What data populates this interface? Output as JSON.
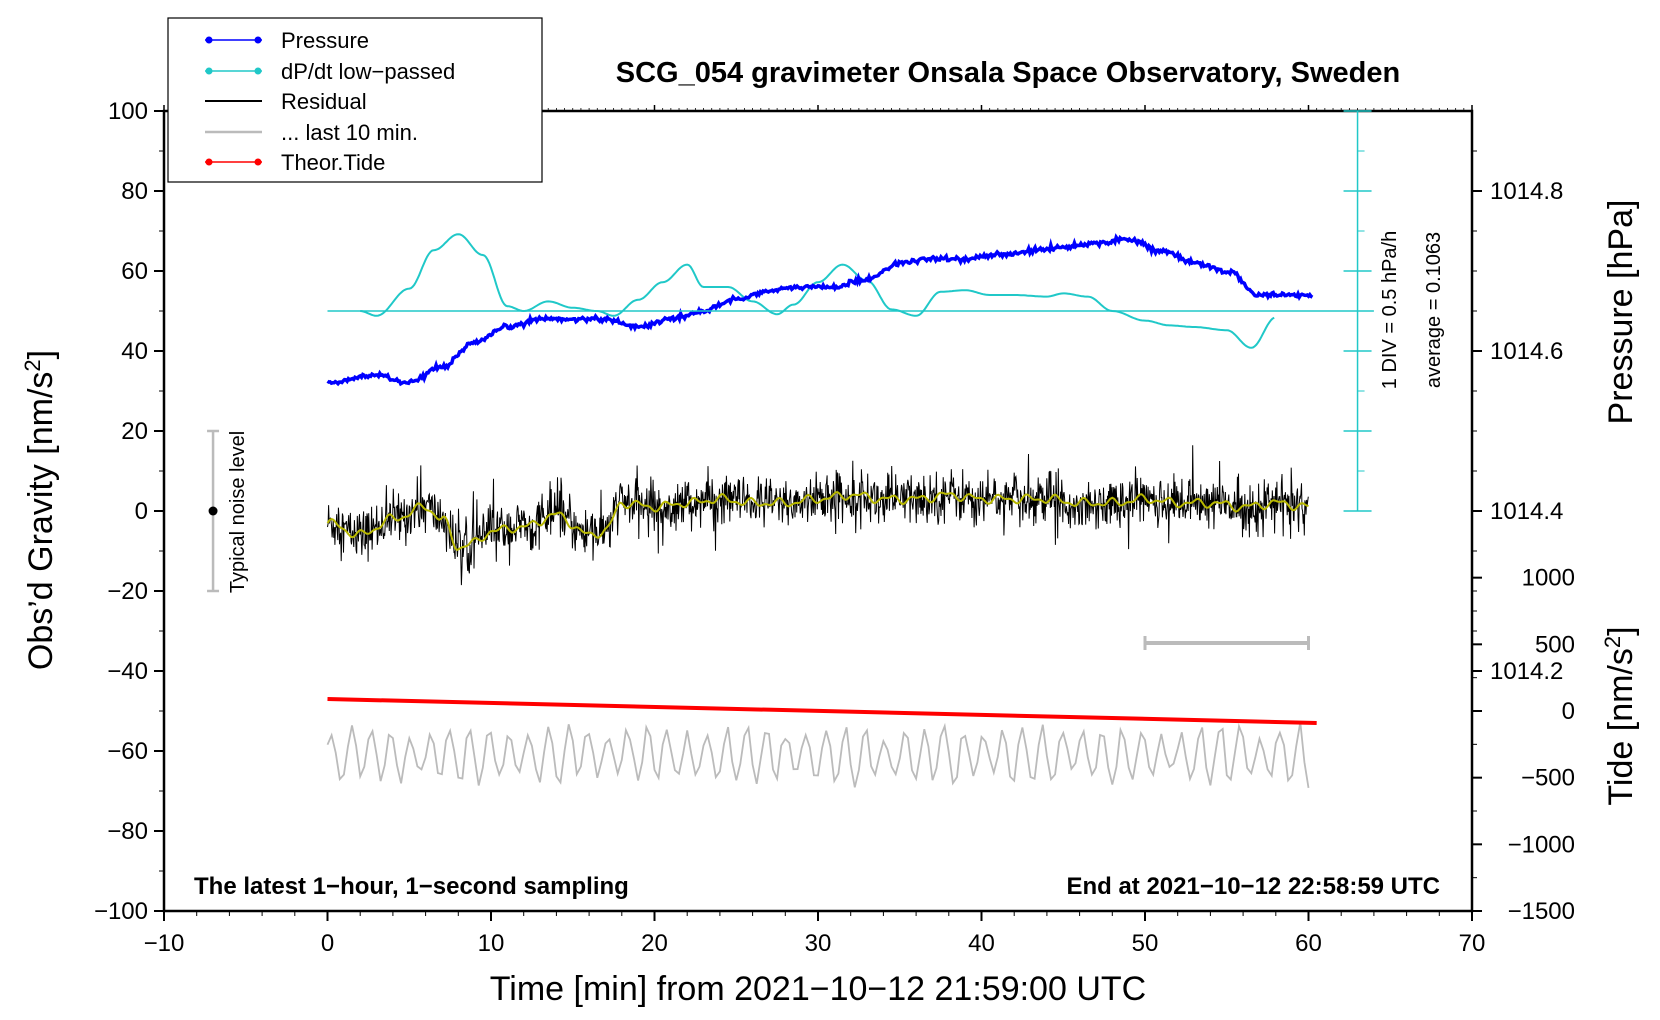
{
  "chart_data": {
    "type": "line",
    "title": "SCG_054 gravimeter Onsala Space Observatory, Sweden",
    "xlabel": "Time [min] from 2021−10−12 21:59:00 UTC",
    "ylabel_left": "Obs’d Gravity [nm/s",
    "ylabel_left_sup": "2",
    "ylabel_left_end": "]",
    "ylabel_right_pressure": "Pressure [hPa]",
    "ylabel_right_tide": "Tide [nm/s",
    "ylabel_right_tide_sup": "2",
    "ylabel_right_tide_end": "]",
    "xlim": [
      -10,
      70
    ],
    "ylim_left": [
      -100,
      100
    ],
    "x_ticks": [
      "−10",
      "0",
      "10",
      "20",
      "30",
      "40",
      "50",
      "60",
      "70"
    ],
    "y_ticks_left": [
      "100",
      "80",
      "60",
      "40",
      "20",
      "0",
      "−20",
      "−40",
      "−60",
      "−80",
      "−100"
    ],
    "pressure_ticks": [
      "1014.8",
      "1014.6",
      "1014.4",
      "1014.2"
    ],
    "tide_ticks": [
      "1000",
      "500",
      "0",
      "−500",
      "−1000",
      "−1500"
    ],
    "annotations": {
      "bottom_left": "The latest 1−hour, 1−second sampling",
      "bottom_right": "End at 2021−10−12 22:58:59 UTC",
      "noise": "Typical noise level",
      "div": "1 DIV = 0.5 hPa/h",
      "average": "average = 0.1063"
    },
    "legend": [
      "Pressure",
      "dP/dt low−passed",
      "Residual",
      "... last 10 min.",
      "Theor.Tide"
    ],
    "series": [
      {
        "name": "Pressure",
        "units": "hPa",
        "color": "#0000ff",
        "x": [
          0,
          3,
          5,
          7,
          9,
          11,
          13,
          15,
          17,
          19,
          21,
          23,
          25,
          27,
          29,
          31,
          33,
          35,
          37,
          39,
          41,
          43,
          45,
          47,
          49,
          51,
          53,
          55,
          57,
          60
        ],
        "values": [
          1014.56,
          1014.57,
          1014.56,
          1014.58,
          1014.61,
          1014.63,
          1014.64,
          1014.64,
          1014.64,
          1014.63,
          1014.64,
          1014.65,
          1014.665,
          1014.675,
          1014.68,
          1014.68,
          1014.69,
          1014.71,
          1014.715,
          1014.715,
          1014.72,
          1014.725,
          1014.73,
          1014.735,
          1014.74,
          1014.725,
          1014.71,
          1014.7,
          1014.67,
          1014.67
        ]
      },
      {
        "name": "dP/dt low−passed",
        "units": "hPa/h",
        "color": "#20c8c8",
        "x": [
          2,
          3,
          5,
          6.5,
          8,
          9.5,
          11,
          12,
          13.5,
          15,
          16.5,
          17.5,
          19,
          20.5,
          22,
          23,
          24.5,
          26,
          27.5,
          28.5,
          30,
          31.5,
          33,
          34.5,
          36,
          37.5,
          39,
          40.5,
          42,
          44,
          45,
          46.5,
          48,
          50,
          51.5,
          53,
          55,
          56.5,
          58
        ],
        "values": [
          0.0,
          -0.03,
          0.14,
          0.38,
          0.48,
          0.35,
          0.03,
          0.0,
          0.06,
          0.02,
          0.0,
          -0.03,
          0.07,
          0.18,
          0.29,
          0.15,
          0.15,
          0.06,
          -0.02,
          0.04,
          0.18,
          0.29,
          0.19,
          0.01,
          -0.03,
          0.12,
          0.13,
          0.1,
          0.1,
          0.09,
          0.11,
          0.09,
          0.0,
          -0.06,
          -0.09,
          -0.1,
          -0.12,
          -0.23,
          -0.04
        ]
      },
      {
        "name": "Residual",
        "units": "nm/s2",
        "color": "#000000",
        "x": [
          0,
          2,
          4,
          6,
          7,
          8,
          9,
          10,
          12,
          14,
          16,
          17,
          18,
          20,
          22,
          24,
          26,
          28,
          30,
          32,
          34,
          36,
          38,
          40,
          42,
          44,
          46,
          48,
          50,
          52,
          54,
          56,
          58,
          60
        ],
        "values": [
          -3,
          -6,
          -2,
          1,
          -2,
          -9,
          -8,
          -5,
          -4,
          -1,
          -6,
          -5,
          2,
          1,
          2,
          3,
          2,
          2,
          3,
          4,
          3,
          3,
          4,
          3,
          3,
          3,
          2,
          2,
          3,
          2,
          2,
          1,
          2,
          1
        ]
      },
      {
        "name": "Residual smoothed",
        "units": "nm/s2",
        "color": "#b8b800",
        "x": [
          0,
          2,
          4,
          6,
          7,
          8,
          9,
          10,
          12,
          14,
          16,
          17,
          18,
          20,
          22,
          24,
          26,
          28,
          30,
          32,
          34,
          36,
          38,
          40,
          42,
          44,
          46,
          48,
          50,
          52,
          54,
          56,
          58,
          60
        ],
        "values": [
          -3,
          -6,
          -2,
          1,
          -2,
          -9,
          -8,
          -5,
          -4,
          -1,
          -6,
          -5,
          2,
          1,
          2,
          3,
          2,
          2,
          3,
          4,
          3,
          3,
          4,
          3,
          3,
          3,
          2,
          2,
          3,
          2,
          2,
          1,
          2,
          1
        ]
      },
      {
        "name": "... last 10 min.",
        "units": "nm/s2",
        "color": "#bbbbbb",
        "x": [
          0,
          60
        ],
        "values": [
          -61,
          -61
        ]
      },
      {
        "name": "Theor.Tide",
        "units": "nm/s2",
        "color": "#ff0000",
        "x": [
          0,
          60
        ],
        "values": [
          -47,
          -53
        ]
      }
    ],
    "noise_bar": {
      "x": -7,
      "y": 0,
      "half_range": 20
    },
    "last10_marker": {
      "x_start": 50,
      "x_end": 60,
      "y": -33
    },
    "dpdt_axis": {
      "x": 63,
      "div_hpa_per_h": 0.5
    }
  }
}
